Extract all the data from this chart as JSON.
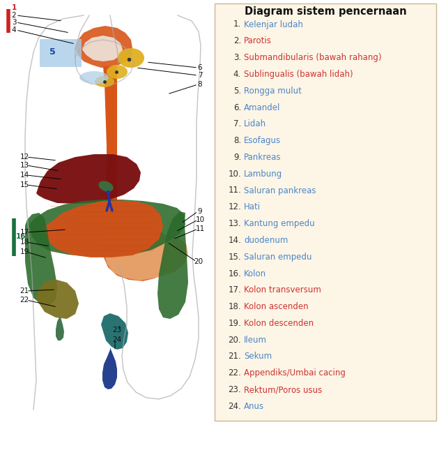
{
  "title": "Diagram sistem pencernaan",
  "bg_color": "#ffffff",
  "legend_bg": "#fdf5e6",
  "items": [
    {
      "num": 1,
      "text": "Kelenjar ludah",
      "color": "#4a86c8"
    },
    {
      "num": 2,
      "text": "Parotis",
      "color": "#cc3333"
    },
    {
      "num": 3,
      "text": "Submandibularis (bawah rahang)",
      "color": "#cc3333"
    },
    {
      "num": 4,
      "text": "Sublingualis (bawah lidah)",
      "color": "#cc3333"
    },
    {
      "num": 5,
      "text": "Rongga mulut",
      "color": "#4a86c8"
    },
    {
      "num": 6,
      "text": "Amandel",
      "color": "#4a86c8"
    },
    {
      "num": 7,
      "text": "Lidah",
      "color": "#4a86c8"
    },
    {
      "num": 8,
      "text": "Esofagus",
      "color": "#4a86c8"
    },
    {
      "num": 9,
      "text": "Pankreas",
      "color": "#4a86c8"
    },
    {
      "num": 10,
      "text": "Lambung",
      "color": "#4a86c8"
    },
    {
      "num": 11,
      "text": "Saluran pankreas",
      "color": "#4a86c8"
    },
    {
      "num": 12,
      "text": "Hati",
      "color": "#4a86c8"
    },
    {
      "num": 13,
      "text": "Kantung empedu",
      "color": "#4a86c8"
    },
    {
      "num": 14,
      "text": "duodenum",
      "color": "#4a86c8"
    },
    {
      "num": 15,
      "text": "Saluran empedu",
      "color": "#4a86c8"
    },
    {
      "num": 16,
      "text": "Kolon",
      "color": "#4a86c8"
    },
    {
      "num": 17,
      "text": "Kolon transversum",
      "color": "#cc3333"
    },
    {
      "num": 18,
      "text": "Kolon ascenden",
      "color": "#cc3333"
    },
    {
      "num": 19,
      "text": "Kolon descenden",
      "color": "#cc3333"
    },
    {
      "num": 20,
      "text": "Ileum",
      "color": "#4a86c8"
    },
    {
      "num": 21,
      "text": "Sekum",
      "color": "#4a86c8"
    },
    {
      "num": 22,
      "text": "Appendiks/Umbai cacing",
      "color": "#cc3333"
    },
    {
      "num": 23,
      "text": "Rektum/Poros usus",
      "color": "#cc3333"
    },
    {
      "num": 24,
      "text": "Anus",
      "color": "#4a86c8"
    }
  ],
  "colors": {
    "esophagus": "#d85518",
    "stomach": "#d06028",
    "liver": "#7a1010",
    "gallbladder": "#3a7040",
    "pancreas": "#e8a870",
    "small_intestine": "#d85018",
    "large_intestine": "#2a6a2a",
    "rectum": "#1a6868",
    "anus_blue": "#1a3888",
    "yellow_gland": "#e0b020",
    "light_blue_box": "#a8cce8",
    "sekum": "#7a7020",
    "green_bar": "#1a7040",
    "red_bar": "#cc2222",
    "body_line": "#aaaaaa",
    "yellow_band": "#c8c010",
    "bile_blue": "#2233aa"
  }
}
